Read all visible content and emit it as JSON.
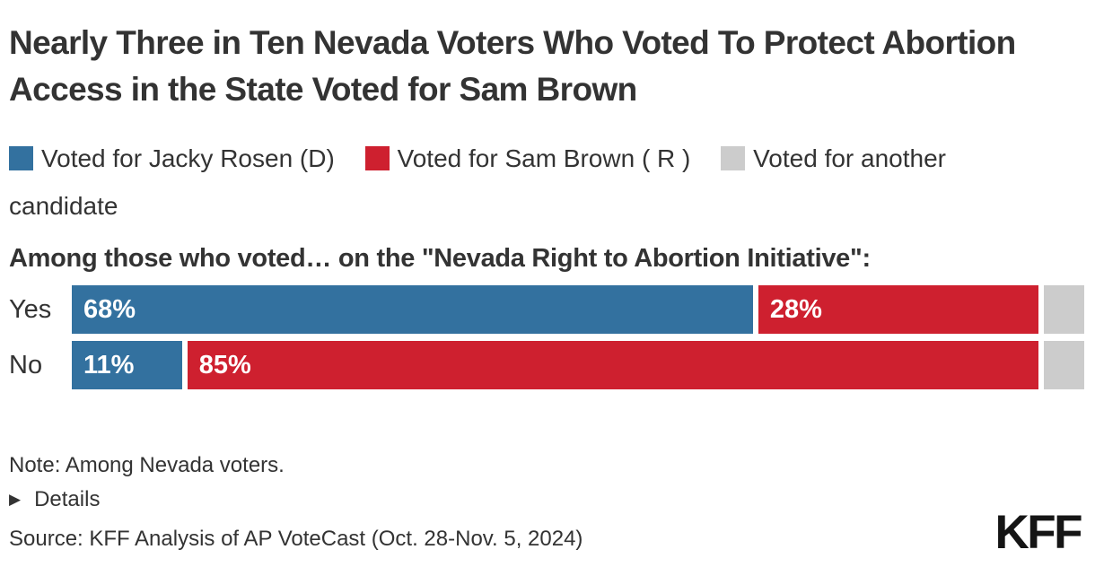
{
  "page": {
    "title": "Nearly Three in Ten Nevada Voters Who Voted To Protect Abortion Access in the State Voted for Sam Brown",
    "question": "Among those who voted… on the \"Nevada Right to Abortion Initiative\":",
    "note": "Note: Among Nevada voters.",
    "details_label": "Details",
    "source": "Source: KFF Analysis of AP VoteCast (Oct. 28-Nov. 5, 2024)",
    "logo": "KFF"
  },
  "colors": {
    "rosen_blue": "#33719F",
    "brown_red": "#CE202F",
    "another_gray": "#CCCCCC",
    "text": "#333333"
  },
  "chart_data": {
    "type": "bar",
    "orientation": "horizontal",
    "stacked": true,
    "title": "Nearly Three in Ten Nevada Voters Who Voted To Protect Abortion Access in the State Voted for Sam Brown",
    "subtitle": "Among those who voted… on the \"Nevada Right to Abortion Initiative\":",
    "xlabel": "",
    "ylabel": "",
    "unit": "%",
    "xlim": [
      0,
      100
    ],
    "grid": false,
    "legend_position": "top",
    "categories": [
      "Yes",
      "No"
    ],
    "series": [
      {
        "name": "Voted for Jacky Rosen (D)",
        "color": "#33719F",
        "values": [
          68,
          11
        ],
        "labels": [
          "68%",
          "11%"
        ]
      },
      {
        "name": "Voted for Sam Brown ( R )",
        "color": "#CE202F",
        "values": [
          28,
          85
        ],
        "labels": [
          "28%",
          "85%"
        ]
      },
      {
        "name": "Voted for another candidate",
        "color": "#CCCCCC",
        "values": [
          4,
          4
        ],
        "labels": [
          "",
          ""
        ]
      }
    ]
  }
}
